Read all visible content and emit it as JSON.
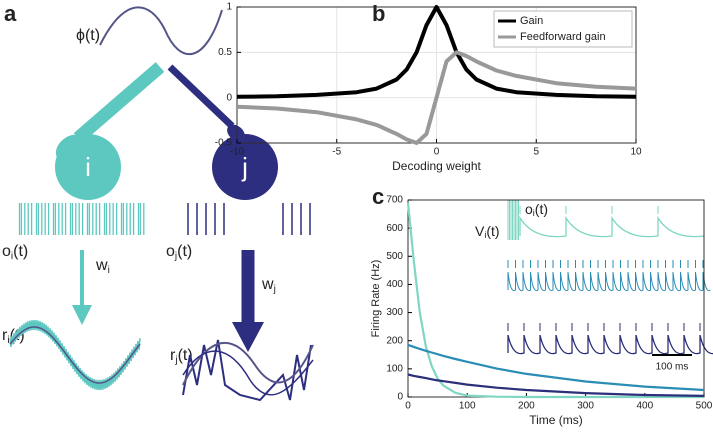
{
  "panel_labels": [
    "a",
    "b",
    "c"
  ],
  "diagram": {
    "phi": "ϕ(t)",
    "neuron_i": "i",
    "neuron_j": "j",
    "o_i": [
      "o",
      "i",
      "(t)"
    ],
    "o_j": [
      "o",
      "j",
      "(t)"
    ],
    "w_i": [
      "w",
      "i"
    ],
    "w_j": [
      "w",
      "j"
    ],
    "r_i": [
      "r",
      "i",
      "(t)"
    ],
    "r_j": [
      "r",
      "j",
      "(t)"
    ]
  },
  "chart_data": [
    {
      "type": "line",
      "xlabel": "Decoding weight",
      "x": [
        -10,
        -8,
        -6,
        -4,
        -3,
        -2,
        -1.5,
        -1,
        -0.5,
        0,
        0.5,
        1,
        1.5,
        2,
        3,
        4,
        6,
        8,
        10
      ],
      "series": [
        {
          "name": "Gain",
          "color": "#000000",
          "values": [
            0.01,
            0.015,
            0.03,
            0.06,
            0.1,
            0.2,
            0.31,
            0.5,
            0.8,
            1,
            0.8,
            0.5,
            0.31,
            0.2,
            0.1,
            0.06,
            0.03,
            0.015,
            0.01
          ]
        },
        {
          "name": "Feedforward gain",
          "color": "#999999",
          "values": [
            -0.1,
            -0.12,
            -0.16,
            -0.24,
            -0.3,
            -0.4,
            -0.46,
            -0.5,
            -0.4,
            0,
            0.4,
            0.5,
            0.46,
            0.4,
            0.3,
            0.24,
            0.16,
            0.12,
            0.1
          ]
        }
      ],
      "xlim": [
        -10,
        10
      ],
      "xticks": [
        -10,
        -5,
        0,
        5,
        10
      ],
      "ylim": [
        -0.5,
        1
      ],
      "yticks": [
        -0.5,
        0,
        0.5,
        1
      ],
      "grid": true,
      "legend": "upper right"
    },
    {
      "type": "line",
      "xlabel": "Time (ms)",
      "ylabel": "Firing Rate (Hz)",
      "x": [
        0,
        10,
        20,
        30,
        40,
        50,
        60,
        80,
        100,
        150,
        200,
        300,
        400,
        500
      ],
      "series": [
        {
          "color": "#7fd6c2",
          "values": [
            690,
            480,
            300,
            180,
            110,
            65,
            40,
            15,
            5,
            1,
            0,
            0,
            0,
            0
          ]
        },
        {
          "color": "#2a8db5",
          "values": [
            185,
            178,
            171,
            164,
            158,
            152,
            146,
            135,
            125,
            101,
            82,
            55,
            37,
            25
          ]
        },
        {
          "color": "#2b2f7a",
          "values": [
            80,
            75,
            71,
            67,
            63,
            59,
            56,
            50,
            44,
            33,
            25,
            14,
            7,
            4
          ]
        }
      ],
      "xlim": [
        0,
        500
      ],
      "xticks": [
        0,
        100,
        200,
        300,
        400,
        500
      ],
      "ylim": [
        0,
        700
      ],
      "yticks": [
        0,
        100,
        200,
        300,
        400,
        500,
        600,
        700
      ],
      "grid": false,
      "inset_labels": {
        "o_i": [
          "o",
          "i",
          "(t)"
        ],
        "v_i": [
          "V",
          "i",
          "(t)"
        ],
        "scale": "100 ms"
      }
    }
  ]
}
